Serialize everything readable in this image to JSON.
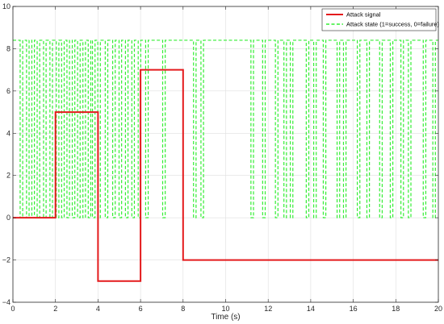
{
  "chart_data": {
    "type": "line",
    "title": "",
    "xlabel": "Time (s)",
    "ylabel": "",
    "xlim": [
      0,
      20
    ],
    "ylim": [
      -4,
      10
    ],
    "x_ticks": [
      0,
      2,
      4,
      6,
      8,
      10,
      12,
      14,
      16,
      18,
      20
    ],
    "y_ticks": [
      -4,
      -2,
      0,
      2,
      4,
      6,
      8,
      10
    ],
    "grid": true,
    "legend_position": "top-right",
    "series": [
      {
        "name": "Attack signal",
        "color": "#e41a1c",
        "style": "solid",
        "x": [
          0,
          2,
          2,
          4,
          4,
          6,
          6,
          8,
          8,
          20
        ],
        "y": [
          0,
          0,
          5,
          5,
          -3,
          -3,
          7,
          7,
          -2,
          -2
        ]
      },
      {
        "name": "Attack state (1=success, 0=failure)",
        "color": "#33ee33",
        "style": "dashed",
        "high": 8.4,
        "low": 0,
        "dips": [
          0.4,
          0.7,
          0.95,
          1.2,
          1.5,
          1.8,
          2.1,
          2.35,
          2.6,
          2.85,
          3.1,
          3.35,
          3.6,
          3.8,
          4.05,
          4.4,
          4.75,
          5.05,
          5.35,
          5.65,
          5.95,
          6.3,
          7.1,
          8.55,
          8.9,
          11.25,
          11.8,
          12.4,
          12.8,
          13.1,
          13.85,
          14.2,
          14.65,
          15.3,
          15.6,
          16.25,
          16.7,
          17.3,
          17.8,
          18.3,
          18.65,
          19.35,
          19.8
        ]
      }
    ]
  }
}
